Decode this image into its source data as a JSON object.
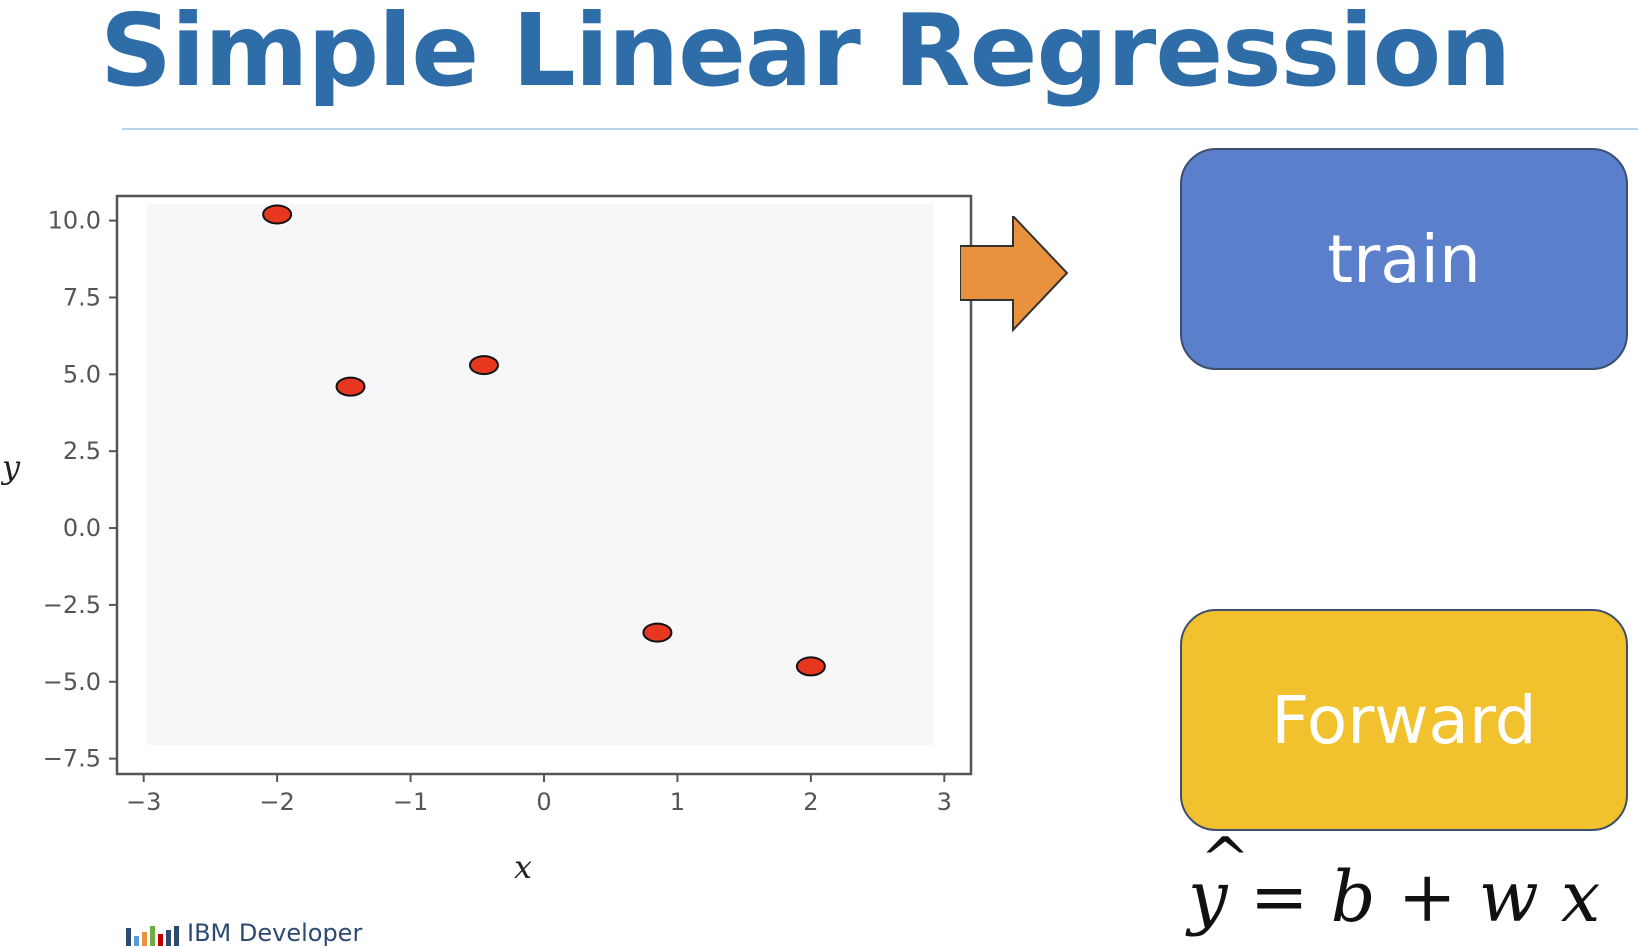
{
  "slide": {
    "title": "Simple Linear Regression"
  },
  "chart_data": {
    "type": "scatter",
    "xlabel": "x",
    "ylabel": "y",
    "xlim": [
      -3.2,
      3.2
    ],
    "ylim": [
      -8.0,
      10.8
    ],
    "xticks": [
      -3,
      -2,
      -1,
      0,
      1,
      2,
      3
    ],
    "yticks": [
      10.0,
      7.5,
      5.0,
      2.5,
      0.0,
      -2.5,
      -5.0,
      -7.5
    ],
    "xtick_labels": [
      "−3",
      "−2",
      "−1",
      "0",
      "1",
      "2",
      "3"
    ],
    "ytick_labels": [
      "10.0",
      "7.5",
      "5.0",
      "2.5",
      "0.0",
      "−2.5",
      "−5.0",
      "−7.5"
    ],
    "points": [
      {
        "x": -2.0,
        "y": 10.2
      },
      {
        "x": -1.45,
        "y": 4.6
      },
      {
        "x": -0.45,
        "y": 5.3
      },
      {
        "x": 0.85,
        "y": -3.4
      },
      {
        "x": 2.0,
        "y": -4.5
      }
    ],
    "grid": false,
    "marker_color": "#e8371f"
  },
  "actions": {
    "train_label": "train",
    "forward_label": "Forward"
  },
  "equation": {
    "yhat": "y",
    "equals": "=",
    "b": "b",
    "plus": "+",
    "w": "w",
    "x": "x"
  },
  "footer": {
    "brand": "IBM Developer"
  },
  "colors": {
    "title": "#2e6da8",
    "train_box": "#5b7fcb",
    "forward_box": "#f2c12e",
    "arrow": "#e8913f"
  }
}
